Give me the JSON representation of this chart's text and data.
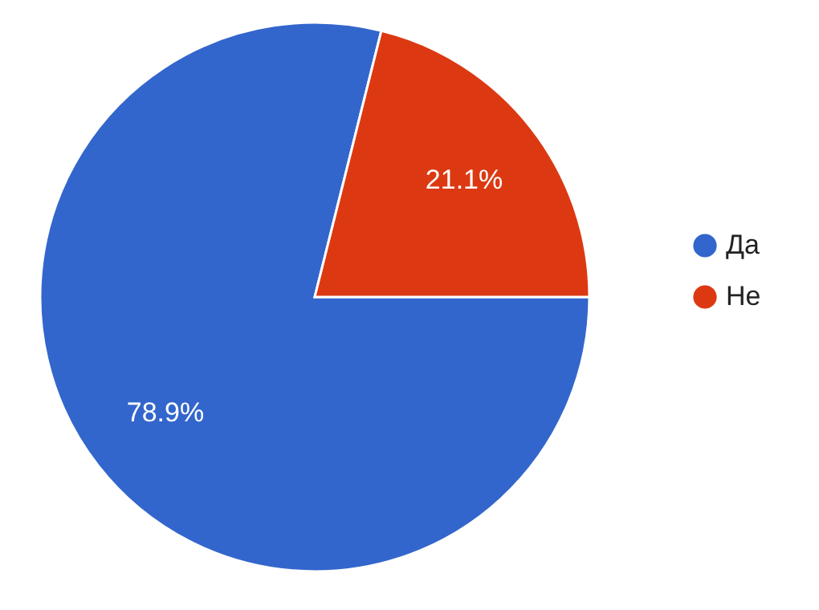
{
  "chart_data": {
    "type": "pie",
    "categories": [
      "Да",
      "Не"
    ],
    "values": [
      78.9,
      21.1
    ],
    "colors": [
      "#3366cc",
      "#dc3912"
    ],
    "value_labels": [
      "78.9%",
      "21.1%"
    ],
    "legend": "right"
  }
}
